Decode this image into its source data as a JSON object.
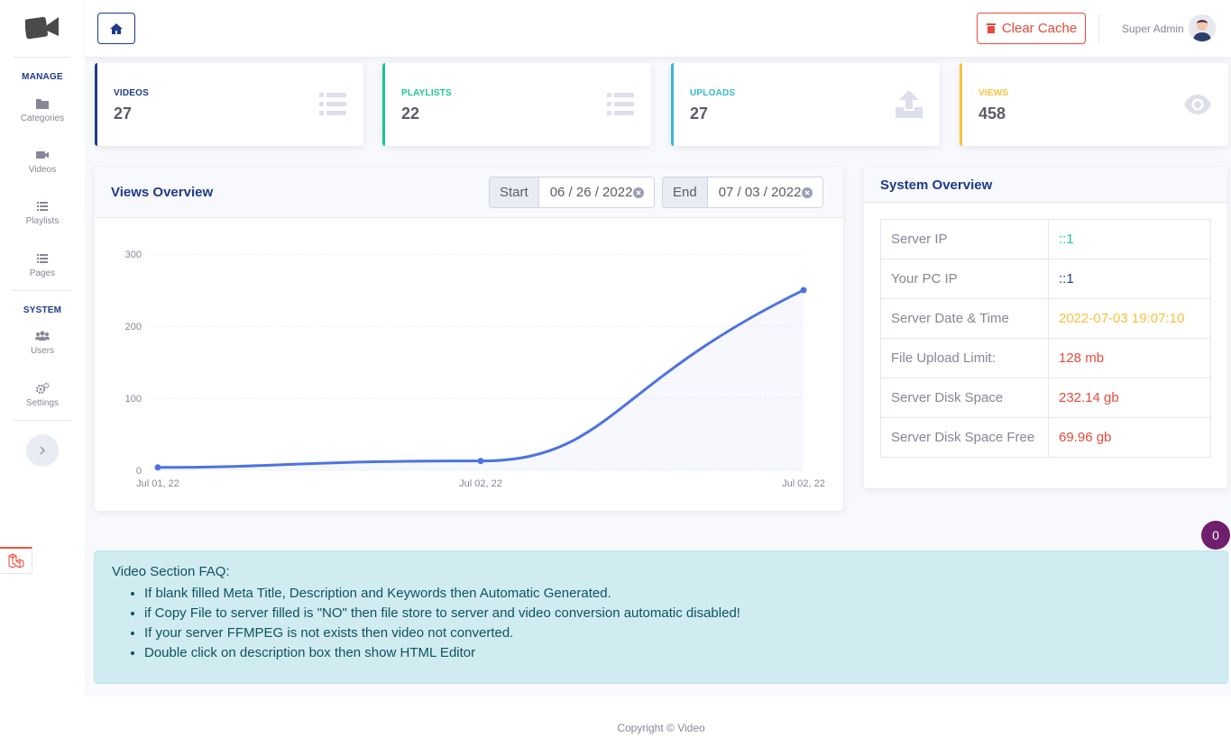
{
  "sidebar": {
    "manage_heading": "MANAGE",
    "system_heading": "SYSTEM",
    "items": [
      {
        "label": "Categories",
        "icon": "folder-icon"
      },
      {
        "label": "Videos",
        "icon": "video-camera-icon"
      },
      {
        "label": "Playlists",
        "icon": "list-icon"
      },
      {
        "label": "Pages",
        "icon": "list-icon"
      },
      {
        "label": "Users",
        "icon": "users-icon"
      },
      {
        "label": "Settings",
        "icon": "cogs-icon"
      }
    ]
  },
  "topbar": {
    "clear_cache_label": "Clear Cache",
    "user_name": "Super Admin"
  },
  "stats": [
    {
      "label": "VIDEOS",
      "value": "27",
      "color": "#1e3a8a",
      "icon": "list-icon"
    },
    {
      "label": "PLAYLISTS",
      "value": "22",
      "color": "#1cc88a",
      "icon": "list-icon"
    },
    {
      "label": "UPLOADS",
      "value": "27",
      "color": "#36b9cc",
      "icon": "upload-icon"
    },
    {
      "label": "VIEWS",
      "value": "458",
      "color": "#f6c23e",
      "icon": "eye-icon"
    }
  ],
  "views_overview": {
    "title": "Views Overview",
    "start_label": "Start",
    "start_date": "06 / 26 / 2022",
    "end_label": "End",
    "end_date": "07 / 03 / 2022"
  },
  "chart_data": {
    "type": "area",
    "title": "",
    "x": [
      "Jul 01, 22",
      "Jul 02, 22",
      "Jul 02, 22"
    ],
    "series": [
      {
        "values": [
          4,
          13,
          250
        ]
      }
    ],
    "y_ticks": [
      0,
      100,
      200,
      300
    ],
    "ylim": [
      0,
      300
    ],
    "grid": true,
    "legend": "none",
    "color": "#4e73df"
  },
  "system_overview": {
    "title": "System Overview",
    "rows": [
      {
        "key": "Server IP",
        "value": "::1",
        "color": "#1cc88a"
      },
      {
        "key": "Your PC IP",
        "value": "::1",
        "color": "#1e3a8a"
      },
      {
        "key": "Server Date & Time",
        "value": "2022-07-03 19:07:10",
        "color": "#f6c23e"
      },
      {
        "key": "File Upload Limit:",
        "value": "128 mb",
        "color": "#e74a3b"
      },
      {
        "key": "Server Disk Space",
        "value": "232.14 gb",
        "color": "#e74a3b"
      },
      {
        "key": "Server Disk Space Free",
        "value": "69.96 gb",
        "color": "#e74a3b"
      }
    ]
  },
  "notification_count": "0",
  "faq": {
    "title": "Video Section FAQ:",
    "items": [
      "If blank filled Meta Title, Description and Keywords then Automatic Generated.",
      "if Copy File to server filled is \"NO\" then file store to server and video conversion automatic disabled!",
      "If your server FFMPEG is not exists then video not converted.",
      "Double click on description box then show HTML Editor"
    ]
  },
  "footer": {
    "text": "Copyright © Video"
  }
}
